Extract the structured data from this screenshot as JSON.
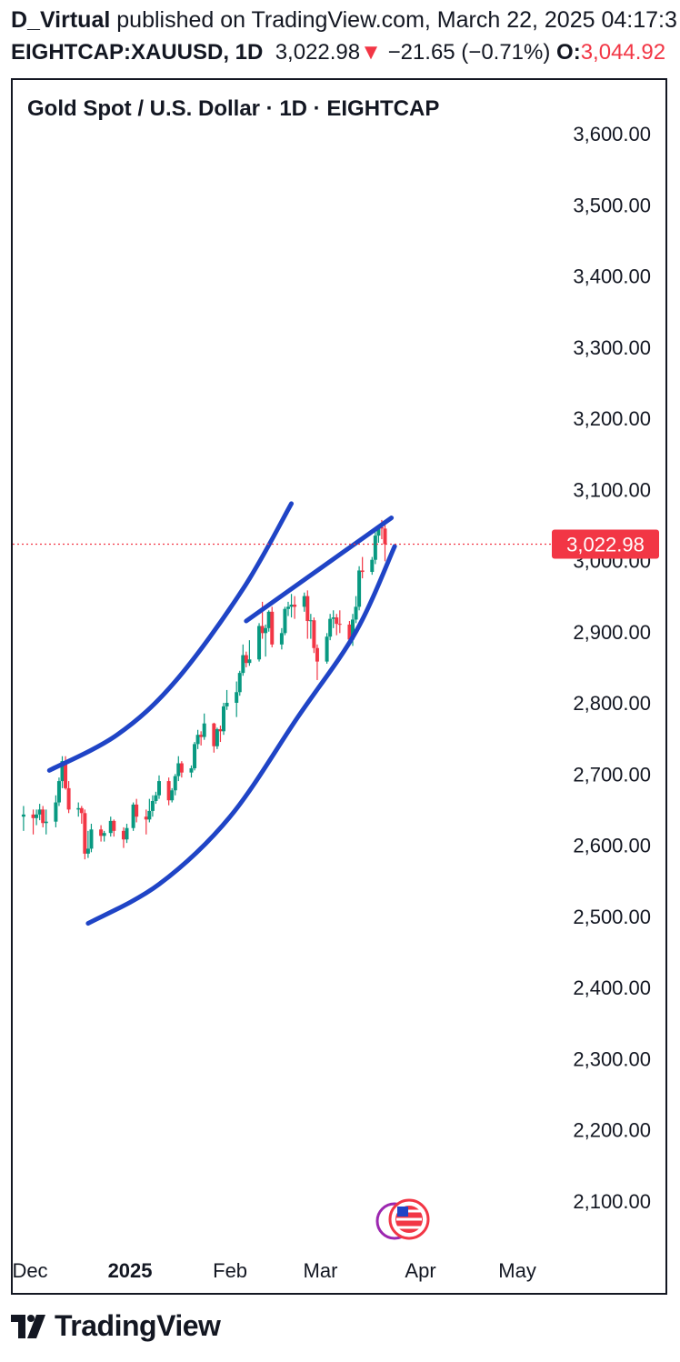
{
  "header": {
    "author": "D_Virtual",
    "published_text": "published on TradingView.com, March 22, 2025 04:17:3",
    "symbol": "EIGHTCAP:XAUUSD, 1D",
    "last_price": "3,022.98",
    "change_arrow": "▼",
    "change": "−21.65 (−0.71%)",
    "open_label": "O:",
    "open_value": "3,044.92"
  },
  "chart_title": "Gold Spot / U.S. Dollar · 1D · EIGHTCAP",
  "footer": {
    "brand": "TradingView"
  },
  "colors": {
    "up": "#089981",
    "down": "#f23645",
    "channel": "#1f44c6",
    "price_tag": "#f23645"
  },
  "chart_data": {
    "type": "candlestick",
    "ylim": [
      2020,
      3640
    ],
    "y_ticks": [
      "3,600.00",
      "3,500.00",
      "3,400.00",
      "3,300.00",
      "3,200.00",
      "3,100.00",
      "3,000.00",
      "2,900.00",
      "2,800.00",
      "2,700.00",
      "2,600.00",
      "2,500.00",
      "2,400.00",
      "2,300.00",
      "2,200.00",
      "2,100.00"
    ],
    "y_tick_values": [
      3600,
      3500,
      3400,
      3300,
      3200,
      3100,
      3000,
      2900,
      2800,
      2700,
      2600,
      2500,
      2400,
      2300,
      2200,
      2100
    ],
    "x_ticks": [
      {
        "label": "Dec",
        "date": "2024-12-01",
        "bold": false
      },
      {
        "label": "2025",
        "date": "2025-01-01",
        "bold": true
      },
      {
        "label": "Feb",
        "date": "2025-02-01",
        "bold": false
      },
      {
        "label": "Mar",
        "date": "2025-03-01",
        "bold": false
      },
      {
        "label": "Apr",
        "date": "2025-04-01",
        "bold": false
      },
      {
        "label": "May",
        "date": "2025-05-01",
        "bold": false
      }
    ],
    "last_price_label": "3,022.98",
    "last_price": 3022.98,
    "series": [
      {
        "d": "2024-11-29",
        "o": 2640,
        "h": 2655,
        "l": 2620,
        "c": 2643
      },
      {
        "d": "2024-12-02",
        "o": 2643,
        "h": 2650,
        "l": 2615,
        "c": 2638
      },
      {
        "d": "2024-12-03",
        "o": 2638,
        "h": 2650,
        "l": 2628,
        "c": 2643
      },
      {
        "d": "2024-12-04",
        "o": 2643,
        "h": 2658,
        "l": 2635,
        "c": 2650
      },
      {
        "d": "2024-12-05",
        "o": 2650,
        "h": 2655,
        "l": 2625,
        "c": 2631
      },
      {
        "d": "2024-12-06",
        "o": 2631,
        "h": 2650,
        "l": 2615,
        "c": 2633
      },
      {
        "d": "2024-12-09",
        "o": 2633,
        "h": 2670,
        "l": 2625,
        "c": 2660
      },
      {
        "d": "2024-12-10",
        "o": 2660,
        "h": 2695,
        "l": 2655,
        "c": 2690
      },
      {
        "d": "2024-12-11",
        "o": 2690,
        "h": 2725,
        "l": 2680,
        "c": 2718
      },
      {
        "d": "2024-12-12",
        "o": 2718,
        "h": 2725,
        "l": 2678,
        "c": 2680
      },
      {
        "d": "2024-12-13",
        "o": 2680,
        "h": 2690,
        "l": 2645,
        "c": 2650
      },
      {
        "d": "2024-12-16",
        "o": 2650,
        "h": 2660,
        "l": 2640,
        "c": 2652
      },
      {
        "d": "2024-12-17",
        "o": 2652,
        "h": 2655,
        "l": 2630,
        "c": 2645
      },
      {
        "d": "2024-12-18",
        "o": 2645,
        "h": 2650,
        "l": 2580,
        "c": 2588
      },
      {
        "d": "2024-12-19",
        "o": 2588,
        "h": 2620,
        "l": 2582,
        "c": 2595
      },
      {
        "d": "2024-12-20",
        "o": 2595,
        "h": 2630,
        "l": 2590,
        "c": 2622
      },
      {
        "d": "2024-12-23",
        "o": 2622,
        "h": 2628,
        "l": 2605,
        "c": 2613
      },
      {
        "d": "2024-12-24",
        "o": 2613,
        "h": 2620,
        "l": 2605,
        "c": 2617
      },
      {
        "d": "2024-12-26",
        "o": 2617,
        "h": 2640,
        "l": 2612,
        "c": 2634
      },
      {
        "d": "2024-12-27",
        "o": 2634,
        "h": 2636,
        "l": 2612,
        "c": 2620
      },
      {
        "d": "2024-12-30",
        "o": 2620,
        "h": 2625,
        "l": 2596,
        "c": 2608
      },
      {
        "d": "2024-12-31",
        "o": 2608,
        "h": 2630,
        "l": 2603,
        "c": 2624
      },
      {
        "d": "2025-01-02",
        "o": 2624,
        "h": 2660,
        "l": 2620,
        "c": 2657
      },
      {
        "d": "2025-01-03",
        "o": 2657,
        "h": 2665,
        "l": 2632,
        "c": 2640
      },
      {
        "d": "2025-01-06",
        "o": 2640,
        "h": 2650,
        "l": 2615,
        "c": 2636
      },
      {
        "d": "2025-01-07",
        "o": 2636,
        "h": 2665,
        "l": 2632,
        "c": 2648
      },
      {
        "d": "2025-01-08",
        "o": 2648,
        "h": 2670,
        "l": 2640,
        "c": 2662
      },
      {
        "d": "2025-01-09",
        "o": 2662,
        "h": 2675,
        "l": 2658,
        "c": 2670
      },
      {
        "d": "2025-01-10",
        "o": 2670,
        "h": 2698,
        "l": 2665,
        "c": 2690
      },
      {
        "d": "2025-01-13",
        "o": 2690,
        "h": 2695,
        "l": 2656,
        "c": 2663
      },
      {
        "d": "2025-01-14",
        "o": 2663,
        "h": 2680,
        "l": 2660,
        "c": 2677
      },
      {
        "d": "2025-01-15",
        "o": 2677,
        "h": 2700,
        "l": 2670,
        "c": 2697
      },
      {
        "d": "2025-01-16",
        "o": 2697,
        "h": 2725,
        "l": 2690,
        "c": 2715
      },
      {
        "d": "2025-01-17",
        "o": 2715,
        "h": 2718,
        "l": 2695,
        "c": 2702
      },
      {
        "d": "2025-01-20",
        "o": 2702,
        "h": 2712,
        "l": 2695,
        "c": 2708
      },
      {
        "d": "2025-01-21",
        "o": 2708,
        "h": 2745,
        "l": 2705,
        "c": 2742
      },
      {
        "d": "2025-01-22",
        "o": 2742,
        "h": 2762,
        "l": 2735,
        "c": 2755
      },
      {
        "d": "2025-01-23",
        "o": 2755,
        "h": 2760,
        "l": 2740,
        "c": 2752
      },
      {
        "d": "2025-01-24",
        "o": 2752,
        "h": 2785,
        "l": 2748,
        "c": 2771
      },
      {
        "d": "2025-01-27",
        "o": 2771,
        "h": 2772,
        "l": 2730,
        "c": 2739
      },
      {
        "d": "2025-01-28",
        "o": 2739,
        "h": 2765,
        "l": 2735,
        "c": 2763
      },
      {
        "d": "2025-01-29",
        "o": 2763,
        "h": 2768,
        "l": 2745,
        "c": 2760
      },
      {
        "d": "2025-01-30",
        "o": 2760,
        "h": 2800,
        "l": 2755,
        "c": 2795
      },
      {
        "d": "2025-01-31",
        "o": 2795,
        "h": 2818,
        "l": 2790,
        "c": 2800
      },
      {
        "d": "2025-02-03",
        "o": 2800,
        "h": 2830,
        "l": 2780,
        "c": 2815
      },
      {
        "d": "2025-02-04",
        "o": 2815,
        "h": 2845,
        "l": 2810,
        "c": 2842
      },
      {
        "d": "2025-02-05",
        "o": 2842,
        "h": 2882,
        "l": 2838,
        "c": 2867
      },
      {
        "d": "2025-02-06",
        "o": 2867,
        "h": 2872,
        "l": 2850,
        "c": 2856
      },
      {
        "d": "2025-02-07",
        "o": 2856,
        "h": 2888,
        "l": 2852,
        "c": 2861
      },
      {
        "d": "2025-02-10",
        "o": 2861,
        "h": 2912,
        "l": 2858,
        "c": 2908
      },
      {
        "d": "2025-02-11",
        "o": 2908,
        "h": 2942,
        "l": 2890,
        "c": 2898
      },
      {
        "d": "2025-02-12",
        "o": 2898,
        "h": 2910,
        "l": 2865,
        "c": 2905
      },
      {
        "d": "2025-02-13",
        "o": 2905,
        "h": 2930,
        "l": 2900,
        "c": 2928
      },
      {
        "d": "2025-02-14",
        "o": 2928,
        "h": 2935,
        "l": 2878,
        "c": 2882
      },
      {
        "d": "2025-02-17",
        "o": 2882,
        "h": 2905,
        "l": 2875,
        "c": 2898
      },
      {
        "d": "2025-02-18",
        "o": 2898,
        "h": 2935,
        "l": 2895,
        "c": 2932
      },
      {
        "d": "2025-02-19",
        "o": 2932,
        "h": 2942,
        "l": 2922,
        "c": 2935
      },
      {
        "d": "2025-02-20",
        "o": 2935,
        "h": 2953,
        "l": 2920,
        "c": 2938
      },
      {
        "d": "2025-02-21",
        "o": 2938,
        "h": 2950,
        "l": 2918,
        "c": 2935
      },
      {
        "d": "2025-02-24",
        "o": 2935,
        "h": 2955,
        "l": 2928,
        "c": 2950
      },
      {
        "d": "2025-02-25",
        "o": 2950,
        "h": 2958,
        "l": 2890,
        "c": 2915
      },
      {
        "d": "2025-02-26",
        "o": 2915,
        "h": 2925,
        "l": 2890,
        "c": 2916
      },
      {
        "d": "2025-02-27",
        "o": 2916,
        "h": 2920,
        "l": 2870,
        "c": 2877
      },
      {
        "d": "2025-02-28",
        "o": 2877,
        "h": 2882,
        "l": 2832,
        "c": 2858
      },
      {
        "d": "2025-03-03",
        "o": 2858,
        "h": 2898,
        "l": 2855,
        "c": 2893
      },
      {
        "d": "2025-03-04",
        "o": 2893,
        "h": 2925,
        "l": 2888,
        "c": 2918
      },
      {
        "d": "2025-03-05",
        "o": 2918,
        "h": 2930,
        "l": 2905,
        "c": 2920
      },
      {
        "d": "2025-03-06",
        "o": 2920,
        "h": 2925,
        "l": 2895,
        "c": 2911
      },
      {
        "d": "2025-03-07",
        "o": 2911,
        "h": 2930,
        "l": 2898,
        "c": 2910
      },
      {
        "d": "2025-03-10",
        "o": 2910,
        "h": 2915,
        "l": 2880,
        "c": 2889
      },
      {
        "d": "2025-03-11",
        "o": 2889,
        "h": 2925,
        "l": 2880,
        "c": 2917
      },
      {
        "d": "2025-03-12",
        "o": 2917,
        "h": 2950,
        "l": 2912,
        "c": 2935
      },
      {
        "d": "2025-03-13",
        "o": 2935,
        "h": 2992,
        "l": 2930,
        "c": 2986
      },
      {
        "d": "2025-03-14",
        "o": 2986,
        "h": 3005,
        "l": 2975,
        "c": 2984
      },
      {
        "d": "2025-03-17",
        "o": 2984,
        "h": 3005,
        "l": 2980,
        "c": 3001
      },
      {
        "d": "2025-03-18",
        "o": 3001,
        "h": 3040,
        "l": 2995,
        "c": 3035
      },
      {
        "d": "2025-03-19",
        "o": 3035,
        "h": 3048,
        "l": 3025,
        "c": 3047
      },
      {
        "d": "2025-03-20",
        "o": 3047,
        "h": 3057,
        "l": 3030,
        "c": 3045
      },
      {
        "d": "2025-03-21",
        "o": 3044.92,
        "h": 3050,
        "l": 2999,
        "c": 3022.98
      }
    ],
    "trendlines": [
      {
        "name": "upper-curve",
        "points": [
          [
            "2024-12-07",
            2705
          ],
          [
            "2024-12-28",
            2755
          ],
          [
            "2025-01-15",
            2830
          ],
          [
            "2025-02-05",
            2960
          ],
          [
            "2025-02-20",
            3080
          ]
        ]
      },
      {
        "name": "lower-curve",
        "points": [
          [
            "2024-12-19",
            2490
          ],
          [
            "2025-01-10",
            2545
          ],
          [
            "2025-02-01",
            2640
          ],
          [
            "2025-02-22",
            2780
          ],
          [
            "2025-03-12",
            2900
          ],
          [
            "2025-03-24",
            3020
          ]
        ]
      },
      {
        "name": "resistance-line",
        "points": [
          [
            "2025-02-06",
            2915
          ],
          [
            "2025-03-23",
            3060
          ]
        ]
      }
    ]
  }
}
